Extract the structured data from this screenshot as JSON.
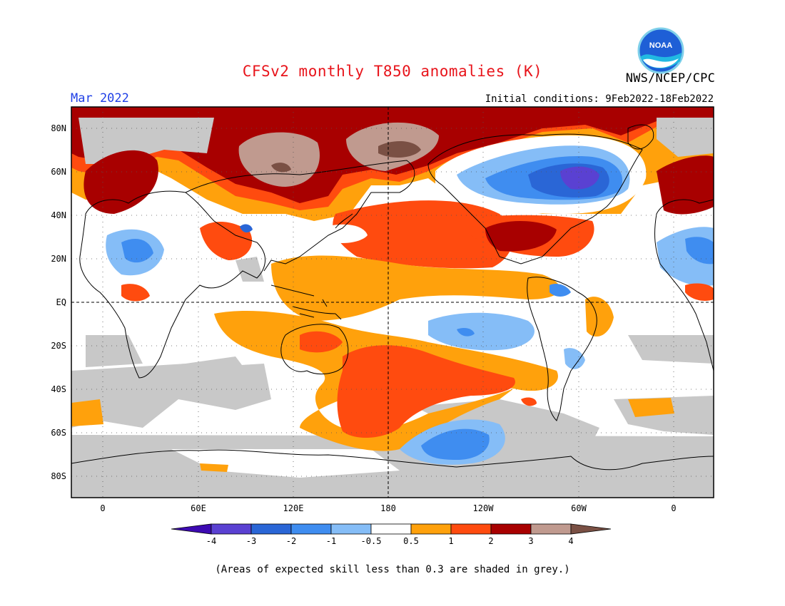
{
  "header": {
    "title": "CFSv2 monthly T850 anomalies (K)",
    "agency": "NWS/NCEP/CPC",
    "valid_month": "Mar 2022",
    "initial_conditions": "Initial conditions: 9Feb2022-18Feb2022",
    "logo_text": "NOAA"
  },
  "map": {
    "lat_labels": [
      "80N",
      "60N",
      "40N",
      "20N",
      "EQ",
      "20S",
      "40S",
      "60S",
      "80S"
    ],
    "lon_labels": [
      "0",
      "60E",
      "120E",
      "180",
      "120W",
      "60W",
      "0"
    ],
    "reference_lines": [
      "EQ",
      "180"
    ]
  },
  "colorbar": {
    "labels": [
      "-4",
      "-3",
      "-2",
      "-1",
      "-0.5",
      "0.5",
      "1",
      "2",
      "3",
      "4"
    ],
    "colors": [
      "#3d0ab2",
      "#5a41d2",
      "#2a66d6",
      "#3f8df0",
      "#85bdf7",
      "#ffffff",
      "#ffa10c",
      "#ff4b0f",
      "#a80000",
      "#c09a8f",
      "#7a5044"
    ],
    "skill_grey": "#c8c8c8"
  },
  "footnote": "(Areas of expected skill less than 0.3 are shaded in grey.)"
}
